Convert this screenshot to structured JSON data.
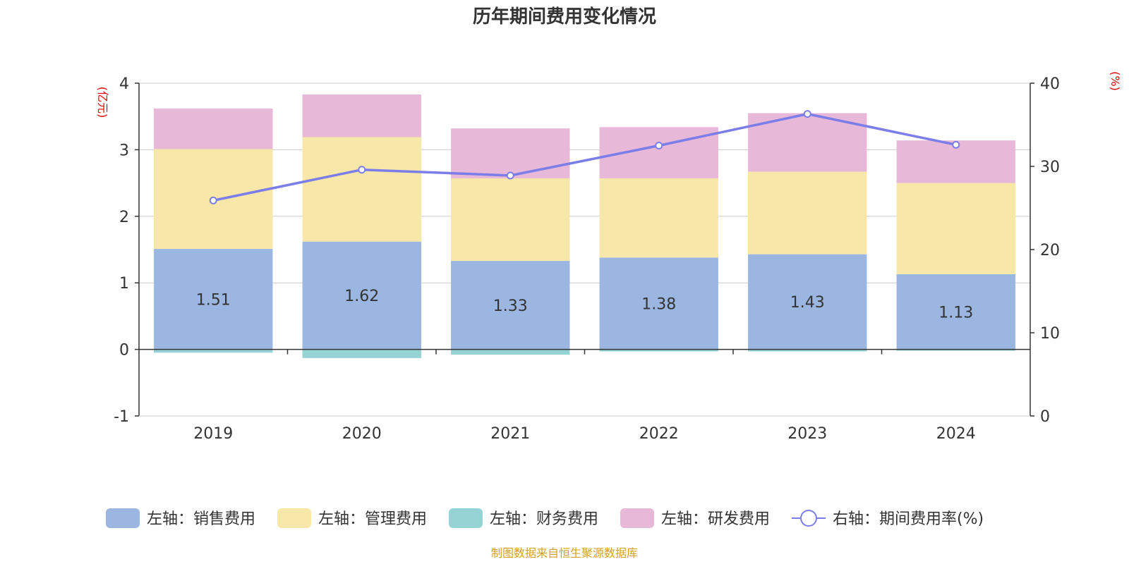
{
  "chart_data": {
    "type": "bar",
    "title": "历年期间费用变化情况",
    "categories": [
      "2019",
      "2020",
      "2021",
      "2022",
      "2023",
      "2024"
    ],
    "left_axis": {
      "unit_label": "(亿元)",
      "ylim": [
        -1,
        4
      ],
      "ticks": [
        -1,
        0,
        1,
        2,
        3,
        4
      ],
      "tick_labels": [
        "-1",
        "0",
        "1",
        "2",
        "3",
        "4"
      ]
    },
    "right_axis": {
      "unit_label": "(%)",
      "ylim": [
        0,
        40
      ],
      "ticks": [
        0,
        10,
        20,
        30,
        40
      ],
      "tick_labels": [
        "0",
        "10",
        "20",
        "30",
        "40"
      ]
    },
    "series": [
      {
        "name": "左轴：销售费用",
        "kind": "bar",
        "axis": "left",
        "color": "#9bb6e0",
        "values": [
          1.51,
          1.62,
          1.33,
          1.38,
          1.43,
          1.13
        ],
        "data_labels": [
          "1.51",
          "1.62",
          "1.33",
          "1.38",
          "1.43",
          "1.13"
        ]
      },
      {
        "name": "左轴：管理费用",
        "kind": "bar",
        "axis": "left",
        "color": "#f7e7a8",
        "values": [
          1.5,
          1.57,
          1.24,
          1.19,
          1.24,
          1.37
        ]
      },
      {
        "name": "左轴：财务费用",
        "kind": "bar",
        "axis": "left",
        "color": "#95d3d4",
        "values": [
          -0.05,
          -0.13,
          -0.08,
          -0.03,
          -0.03,
          -0.02
        ]
      },
      {
        "name": "左轴：研发费用",
        "kind": "bar",
        "axis": "left",
        "color": "#e8b8d8",
        "values": [
          0.61,
          0.64,
          0.75,
          0.77,
          0.88,
          0.64
        ]
      },
      {
        "name": "右轴：期间费用率(%)",
        "kind": "line",
        "axis": "right",
        "color": "#7b7ee8",
        "values": [
          25.9,
          29.6,
          28.9,
          32.5,
          36.3,
          32.6
        ]
      }
    ],
    "unit_label_color": "#e00000",
    "legend_position": "bottom",
    "grid": true,
    "source_note": "制图数据来自恒生聚源数据库",
    "source_color": "#d4a020"
  }
}
